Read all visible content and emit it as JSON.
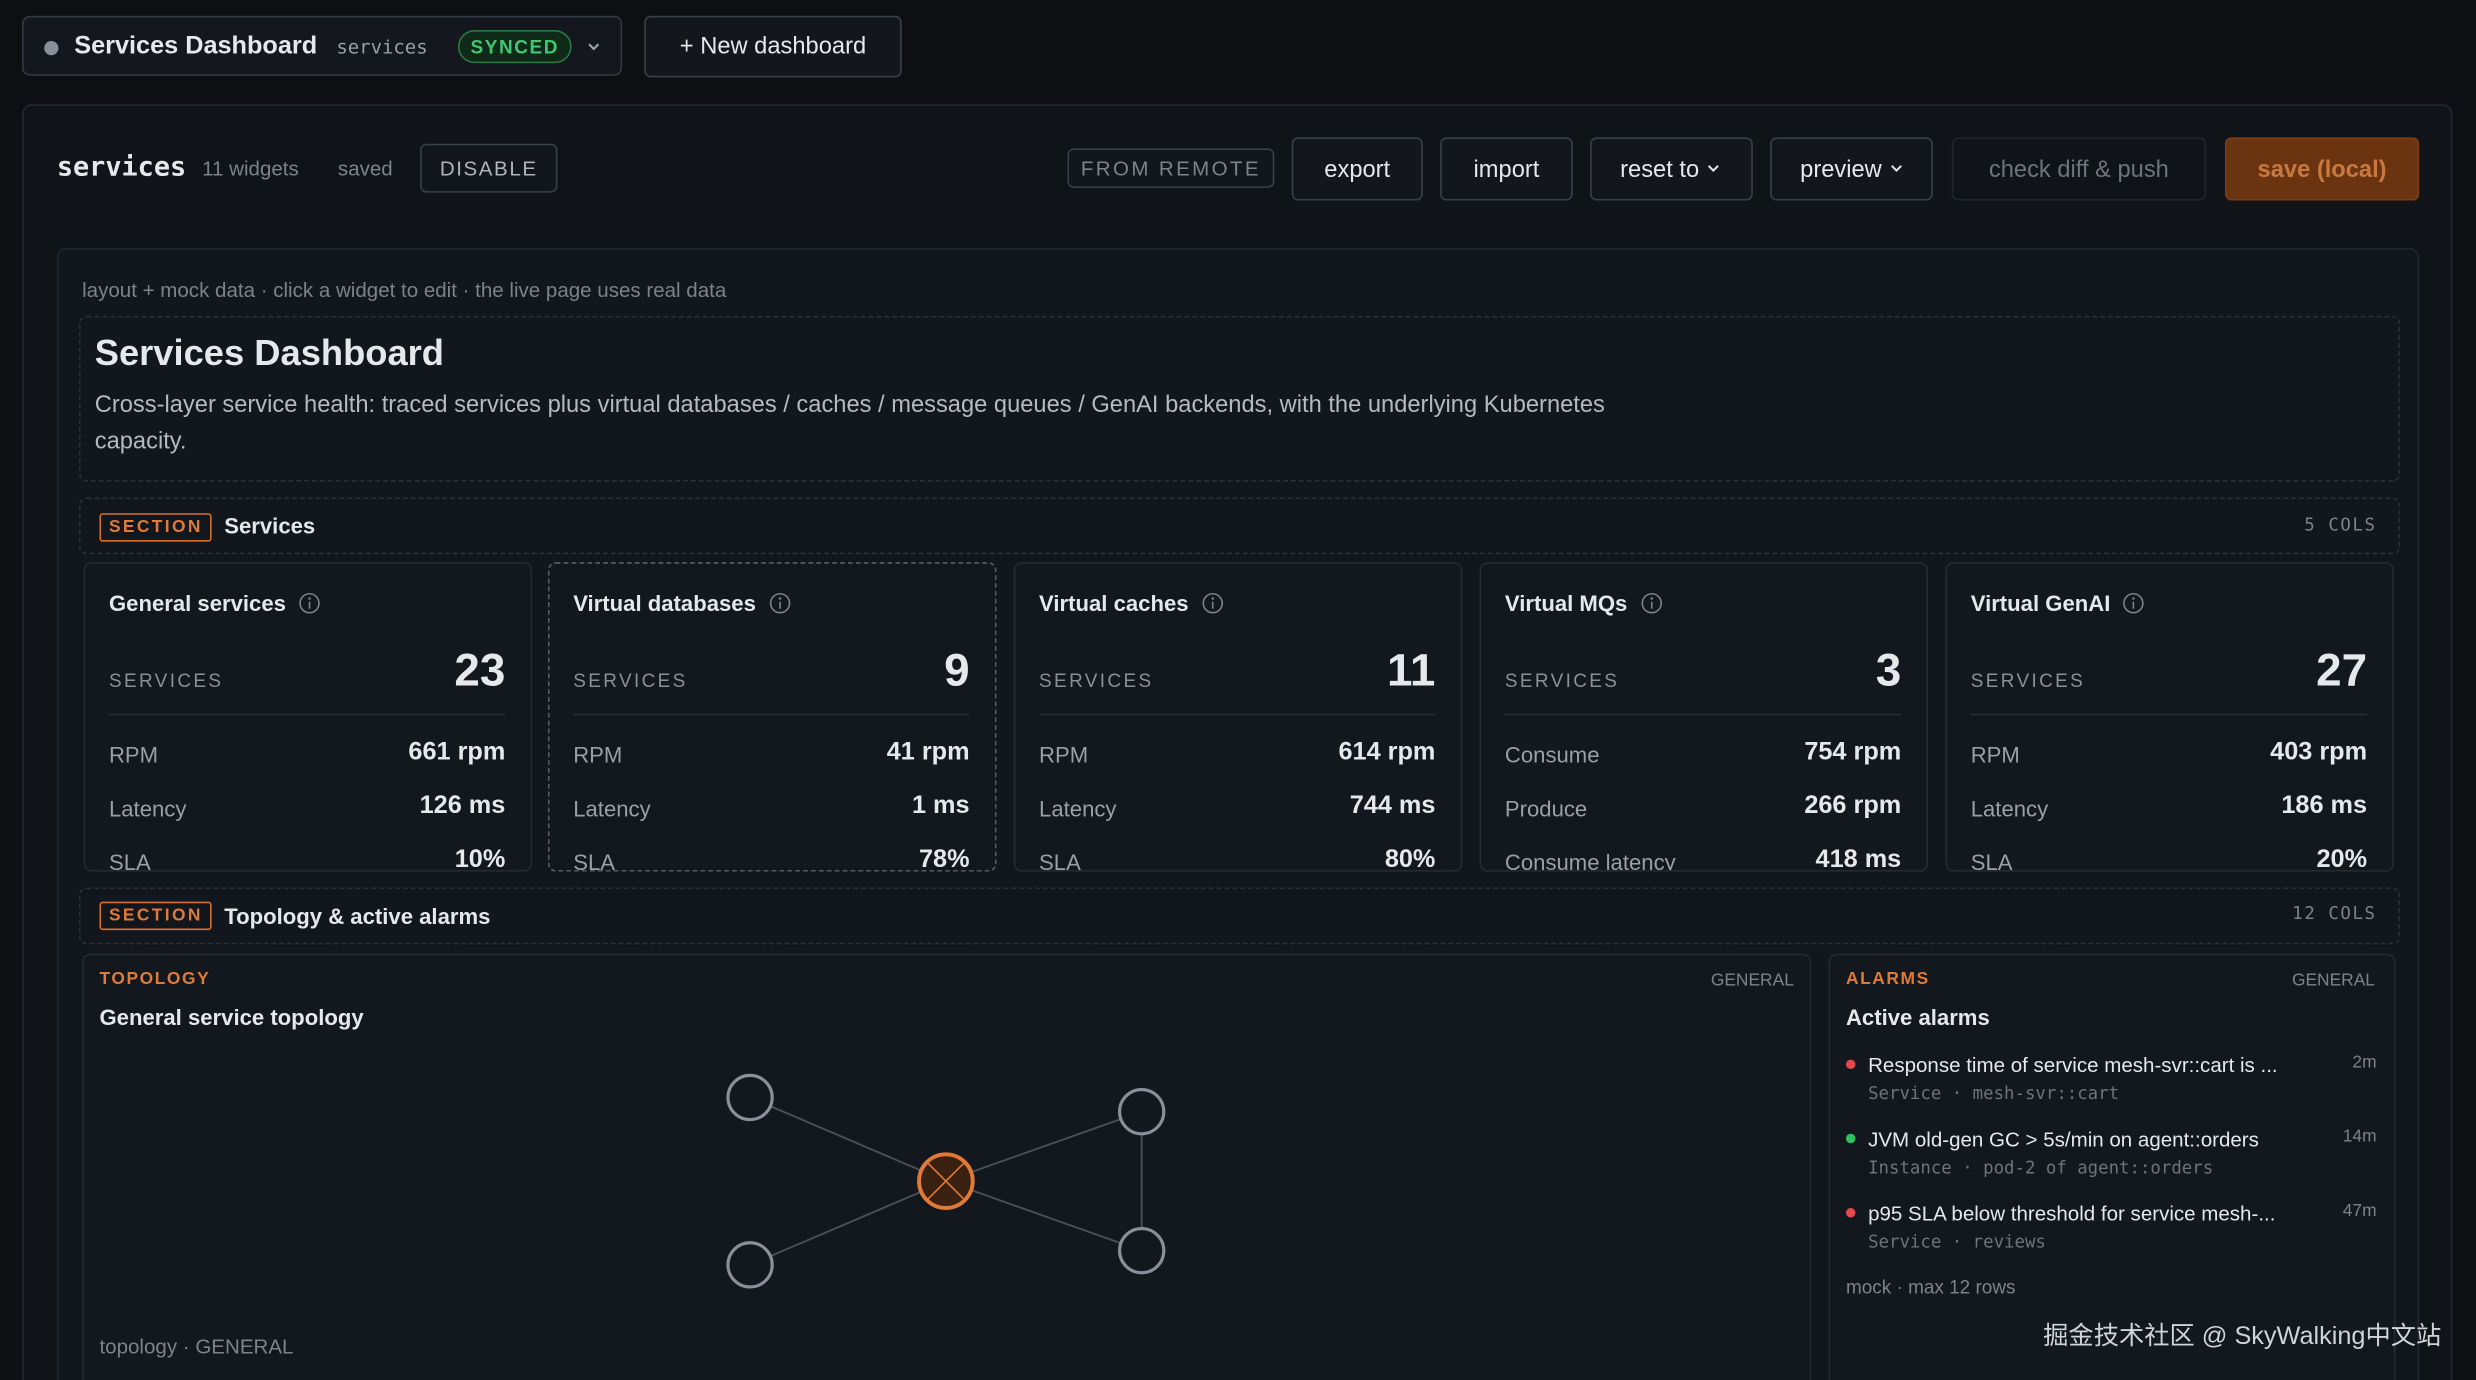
{
  "header": {
    "title": "Services Dashboard",
    "slug": "services",
    "status": "SYNCED",
    "new_button": "+ New dashboard"
  },
  "toolbar": {
    "name": "services",
    "widgets": "11 widgets",
    "saved": "saved",
    "disable": "DISABLE",
    "from_remote": "FROM REMOTE",
    "export": "export",
    "import": "import",
    "reset": "reset to",
    "preview": "preview",
    "check": "check diff & push",
    "save": "save (local)"
  },
  "canvas": {
    "note": "layout + mock data · click a widget to edit · the live page uses real data",
    "intro": {
      "title": "Services Dashboard",
      "description": "Cross-layer service health: traced services plus virtual databases / caches / message queues / GenAI backends, with the underlying Kubernetes capacity."
    },
    "sections": [
      {
        "tag": "SECTION",
        "title": "Services",
        "cols": "5 COLS",
        "cards": [
          {
            "name": "General services",
            "primary_label": "SERVICES",
            "primary_value": 23,
            "rows": [
              [
                "RPM",
                "661 rpm"
              ],
              [
                "Latency",
                "126 ms"
              ],
              [
                "SLA",
                "10%"
              ]
            ]
          },
          {
            "name": "Virtual databases",
            "primary_label": "SERVICES",
            "primary_value": 9,
            "rows": [
              [
                "RPM",
                "41 rpm"
              ],
              [
                "Latency",
                "1 ms"
              ],
              [
                "SLA",
                "78%"
              ]
            ]
          },
          {
            "name": "Virtual caches",
            "primary_label": "SERVICES",
            "primary_value": 11,
            "rows": [
              [
                "RPM",
                "614 rpm"
              ],
              [
                "Latency",
                "744 ms"
              ],
              [
                "SLA",
                "80%"
              ]
            ]
          },
          {
            "name": "Virtual MQs",
            "primary_label": "SERVICES",
            "primary_value": 3,
            "rows": [
              [
                "Consume",
                "754 rpm"
              ],
              [
                "Produce",
                "266 rpm"
              ],
              [
                "Consume latency",
                "418 ms"
              ]
            ]
          },
          {
            "name": "Virtual GenAI",
            "primary_label": "SERVICES",
            "primary_value": 27,
            "rows": [
              [
                "RPM",
                "403 rpm"
              ],
              [
                "Latency",
                "186 ms"
              ],
              [
                "SLA",
                "20%"
              ]
            ]
          }
        ]
      },
      {
        "tag": "SECTION",
        "title": "Topology & active alarms",
        "cols": "12 COLS"
      }
    ],
    "topology": {
      "kind": "TOPOLOGY",
      "scope": "GENERAL",
      "title": "General service topology",
      "footer": "topology · GENERAL"
    },
    "alarms": {
      "kind": "ALARMS",
      "scope": "GENERAL",
      "title": "Active alarms",
      "footer": "mock · max 12 rows",
      "items": [
        {
          "text": "Response time of service mesh-svr::cart is ...",
          "meta": "Service · mesh-svr::cart",
          "age": "2m",
          "color": "#e5484d"
        },
        {
          "text": "JVM old-gen GC > 5s/min on agent::orders",
          "meta": "Instance · pod-2 of agent::orders",
          "age": "14m",
          "color": "#30c060"
        },
        {
          "text": "p95 SLA below threshold for service mesh-...",
          "meta": "Service · reviews",
          "age": "47m",
          "color": "#e5484d"
        }
      ]
    }
  },
  "watermark": "掘金技术社区 @ SkyWalking中文站"
}
